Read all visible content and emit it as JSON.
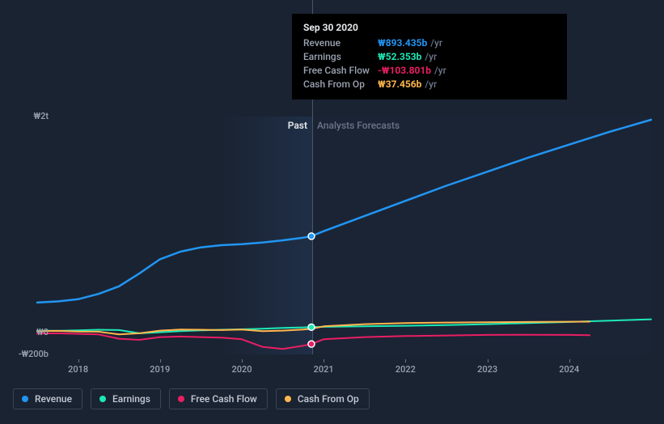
{
  "background_color": "#1a2332",
  "chart": {
    "type": "line",
    "x_domain_years": [
      2017.5,
      2025.0
    ],
    "y_domain": [
      -200,
      2000
    ],
    "y_ticks": [
      {
        "value": 2000,
        "label": "₩2t"
      },
      {
        "value": 0,
        "label": "₩0"
      },
      {
        "value": -200,
        "label": "-₩200b"
      }
    ],
    "x_ticks": [
      {
        "value": 2018,
        "label": "2018"
      },
      {
        "value": 2019,
        "label": "2019"
      },
      {
        "value": 2020,
        "label": "2020"
      },
      {
        "value": 2021,
        "label": "2021"
      },
      {
        "value": 2022,
        "label": "2022"
      },
      {
        "value": 2023,
        "label": "2023"
      },
      {
        "value": 2024,
        "label": "2024"
      }
    ],
    "past_label": "Past",
    "forecast_label": "Analysts Forecasts",
    "divider_x": 2020.85,
    "grid_color": "#2a3548",
    "text_color": "#9aa3b2",
    "series": [
      {
        "id": "revenue",
        "label": "Revenue",
        "color": "#2196f3",
        "width": 2.5,
        "points": [
          [
            2017.5,
            280
          ],
          [
            2017.75,
            290
          ],
          [
            2018.0,
            310
          ],
          [
            2018.25,
            360
          ],
          [
            2018.5,
            430
          ],
          [
            2018.75,
            550
          ],
          [
            2019.0,
            680
          ],
          [
            2019.25,
            750
          ],
          [
            2019.5,
            790
          ],
          [
            2019.75,
            810
          ],
          [
            2020.0,
            820
          ],
          [
            2020.25,
            835
          ],
          [
            2020.5,
            855
          ],
          [
            2020.75,
            880
          ],
          [
            2020.85,
            893
          ],
          [
            2021.0,
            940
          ],
          [
            2021.5,
            1080
          ],
          [
            2022.0,
            1220
          ],
          [
            2022.5,
            1360
          ],
          [
            2023.0,
            1490
          ],
          [
            2023.5,
            1620
          ],
          [
            2024.0,
            1740
          ],
          [
            2024.5,
            1860
          ],
          [
            2025.0,
            1970
          ]
        ]
      },
      {
        "id": "earnings",
        "label": "Earnings",
        "color": "#1de9b6",
        "width": 2,
        "points": [
          [
            2017.5,
            20
          ],
          [
            2017.75,
            18
          ],
          [
            2018.0,
            22
          ],
          [
            2018.25,
            28
          ],
          [
            2018.5,
            25
          ],
          [
            2018.75,
            -5
          ],
          [
            2019.0,
            5
          ],
          [
            2019.25,
            15
          ],
          [
            2019.5,
            22
          ],
          [
            2019.75,
            28
          ],
          [
            2020.0,
            32
          ],
          [
            2020.25,
            38
          ],
          [
            2020.5,
            45
          ],
          [
            2020.75,
            50
          ],
          [
            2020.85,
            52
          ],
          [
            2021.0,
            55
          ],
          [
            2021.5,
            60
          ],
          [
            2022.0,
            65
          ],
          [
            2022.5,
            72
          ],
          [
            2023.0,
            80
          ],
          [
            2023.5,
            90
          ],
          [
            2024.0,
            100
          ],
          [
            2024.5,
            112
          ],
          [
            2025.0,
            125
          ]
        ]
      },
      {
        "id": "free_cash_flow",
        "label": "Free Cash Flow",
        "color": "#e91e63",
        "width": 2,
        "points": [
          [
            2017.5,
            -8
          ],
          [
            2017.75,
            -5
          ],
          [
            2018.0,
            -10
          ],
          [
            2018.25,
            -15
          ],
          [
            2018.5,
            -55
          ],
          [
            2018.75,
            -65
          ],
          [
            2019.0,
            -40
          ],
          [
            2019.25,
            -35
          ],
          [
            2019.5,
            -40
          ],
          [
            2019.75,
            -45
          ],
          [
            2020.0,
            -60
          ],
          [
            2020.25,
            -130
          ],
          [
            2020.5,
            -150
          ],
          [
            2020.75,
            -120
          ],
          [
            2020.85,
            -104
          ],
          [
            2021.0,
            -60
          ],
          [
            2021.5,
            -40
          ],
          [
            2022.0,
            -30
          ],
          [
            2022.5,
            -25
          ],
          [
            2023.0,
            -20
          ],
          [
            2023.5,
            -18
          ],
          [
            2024.0,
            -20
          ],
          [
            2024.25,
            -22
          ]
        ]
      },
      {
        "id": "cash_from_op",
        "label": "Cash From Op",
        "color": "#ffb74d",
        "width": 2,
        "points": [
          [
            2017.5,
            15
          ],
          [
            2017.75,
            18
          ],
          [
            2018.0,
            12
          ],
          [
            2018.25,
            10
          ],
          [
            2018.5,
            -15
          ],
          [
            2018.75,
            -5
          ],
          [
            2019.0,
            20
          ],
          [
            2019.25,
            30
          ],
          [
            2019.5,
            28
          ],
          [
            2019.75,
            25
          ],
          [
            2020.0,
            30
          ],
          [
            2020.25,
            15
          ],
          [
            2020.5,
            20
          ],
          [
            2020.75,
            30
          ],
          [
            2020.85,
            37
          ],
          [
            2021.0,
            60
          ],
          [
            2021.5,
            80
          ],
          [
            2022.0,
            90
          ],
          [
            2022.5,
            95
          ],
          [
            2023.0,
            98
          ],
          [
            2023.5,
            100
          ],
          [
            2024.0,
            102
          ],
          [
            2024.25,
            103
          ]
        ]
      }
    ],
    "markers": [
      {
        "series": "revenue",
        "x": 2020.85,
        "y": 893
      },
      {
        "series": "earnings",
        "x": 2020.85,
        "y": 52
      },
      {
        "series": "free_cash_flow",
        "x": 2020.85,
        "y": -104
      }
    ]
  },
  "tooltip": {
    "date": "Sep 30 2020",
    "unit": "/yr",
    "rows": [
      {
        "label": "Revenue",
        "value": "₩893.435b",
        "color": "#2196f3"
      },
      {
        "label": "Earnings",
        "value": "₩52.353b",
        "color": "#1de9b6"
      },
      {
        "label": "Free Cash Flow",
        "value": "-₩103.801b",
        "color": "#e91e63"
      },
      {
        "label": "Cash From Op",
        "value": "₩37.456b",
        "color": "#ffb74d"
      }
    ]
  },
  "legend": [
    {
      "id": "revenue",
      "label": "Revenue",
      "color": "#2196f3"
    },
    {
      "id": "earnings",
      "label": "Earnings",
      "color": "#1de9b6"
    },
    {
      "id": "free_cash_flow",
      "label": "Free Cash Flow",
      "color": "#e91e63"
    },
    {
      "id": "cash_from_op",
      "label": "Cash From Op",
      "color": "#ffb74d"
    }
  ]
}
